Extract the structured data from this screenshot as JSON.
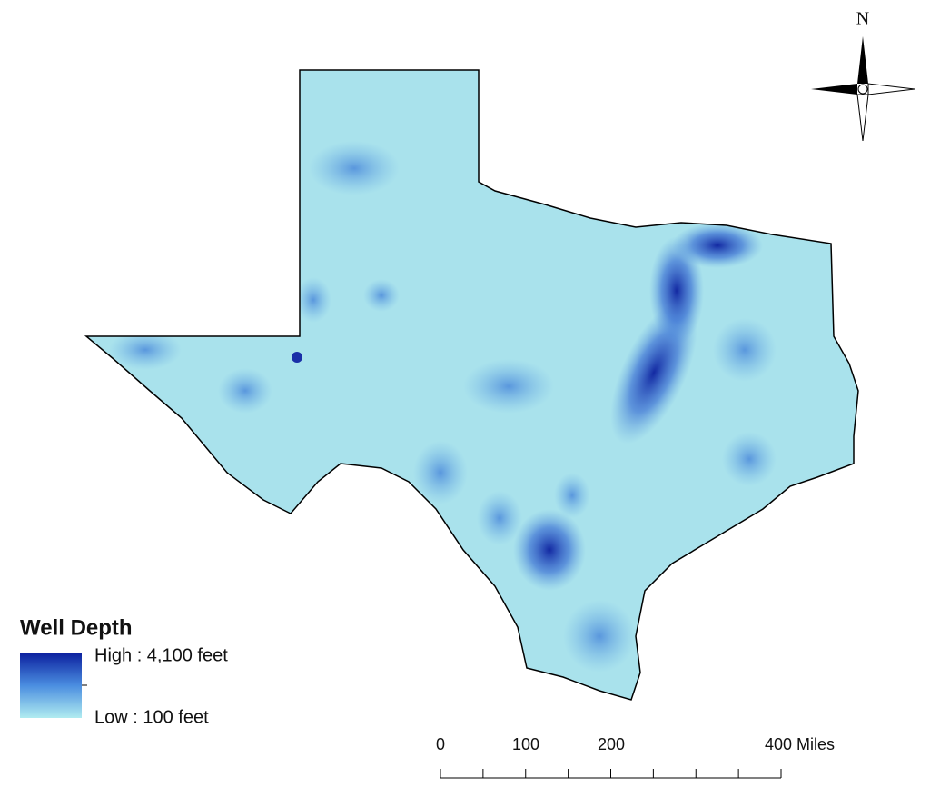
{
  "north_label": "N",
  "legend": {
    "title": "Well Depth",
    "high": "High : 4,100 feet",
    "low": "Low : 100 feet"
  },
  "scale_bar": {
    "labels": [
      "0",
      "100",
      "200",
      "400 Miles"
    ]
  }
}
